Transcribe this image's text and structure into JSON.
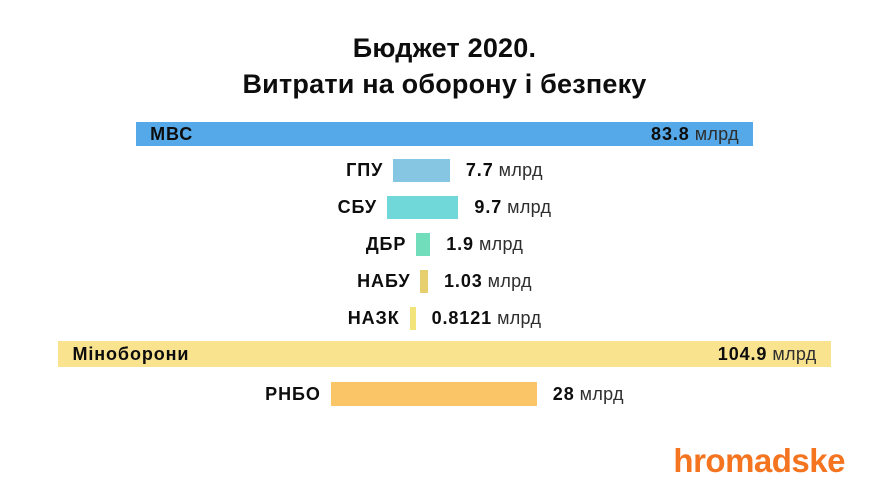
{
  "title": {
    "line1": "Бюджет 2020.",
    "line2": "Витрати на оборону і безпеку"
  },
  "branding": {
    "logo_text": "hromadske",
    "logo_color": "#F47420"
  },
  "chart_data": {
    "type": "bar",
    "orientation": "horizontal",
    "title": "Бюджет 2020. Витрати на оборону і безпеку",
    "unit": "млрд",
    "legend": false,
    "grid": false,
    "axis": "none",
    "categories": [
      "МВС",
      "ГПУ",
      "СБУ",
      "ДБР",
      "НАБУ",
      "НАЗК",
      "Міноборони",
      "РНБО"
    ],
    "values": [
      83.8,
      7.7,
      9.7,
      1.9,
      1.03,
      0.8121,
      104.9,
      28
    ],
    "bars": [
      {
        "label": "МВС",
        "value": 83.8,
        "value_label": "83.8",
        "color": "#55A9E8",
        "labels_inside": true
      },
      {
        "label": "ГПУ",
        "value": 7.7,
        "value_label": "7.7",
        "color": "#87C6E3",
        "labels_inside": false
      },
      {
        "label": "СБУ",
        "value": 9.7,
        "value_label": "9.7",
        "color": "#71D8DA",
        "labels_inside": false
      },
      {
        "label": "ДБР",
        "value": 1.9,
        "value_label": "1.9",
        "color": "#71DDBA",
        "labels_inside": false
      },
      {
        "label": "НАБУ",
        "value": 1.03,
        "value_label": "1.03",
        "color": "#E7CF6E",
        "labels_inside": false
      },
      {
        "label": "НАЗК",
        "value": 0.8121,
        "value_label": "0.8121",
        "color": "#F2E47B",
        "labels_inside": false
      },
      {
        "label": "Міноборони",
        "value": 104.9,
        "value_label": "104.9",
        "color": "#FAE38F",
        "labels_inside": true
      },
      {
        "label": "РНБО",
        "value": 28,
        "value_label": "28",
        "color": "#F9C566",
        "labels_inside": false
      }
    ]
  }
}
